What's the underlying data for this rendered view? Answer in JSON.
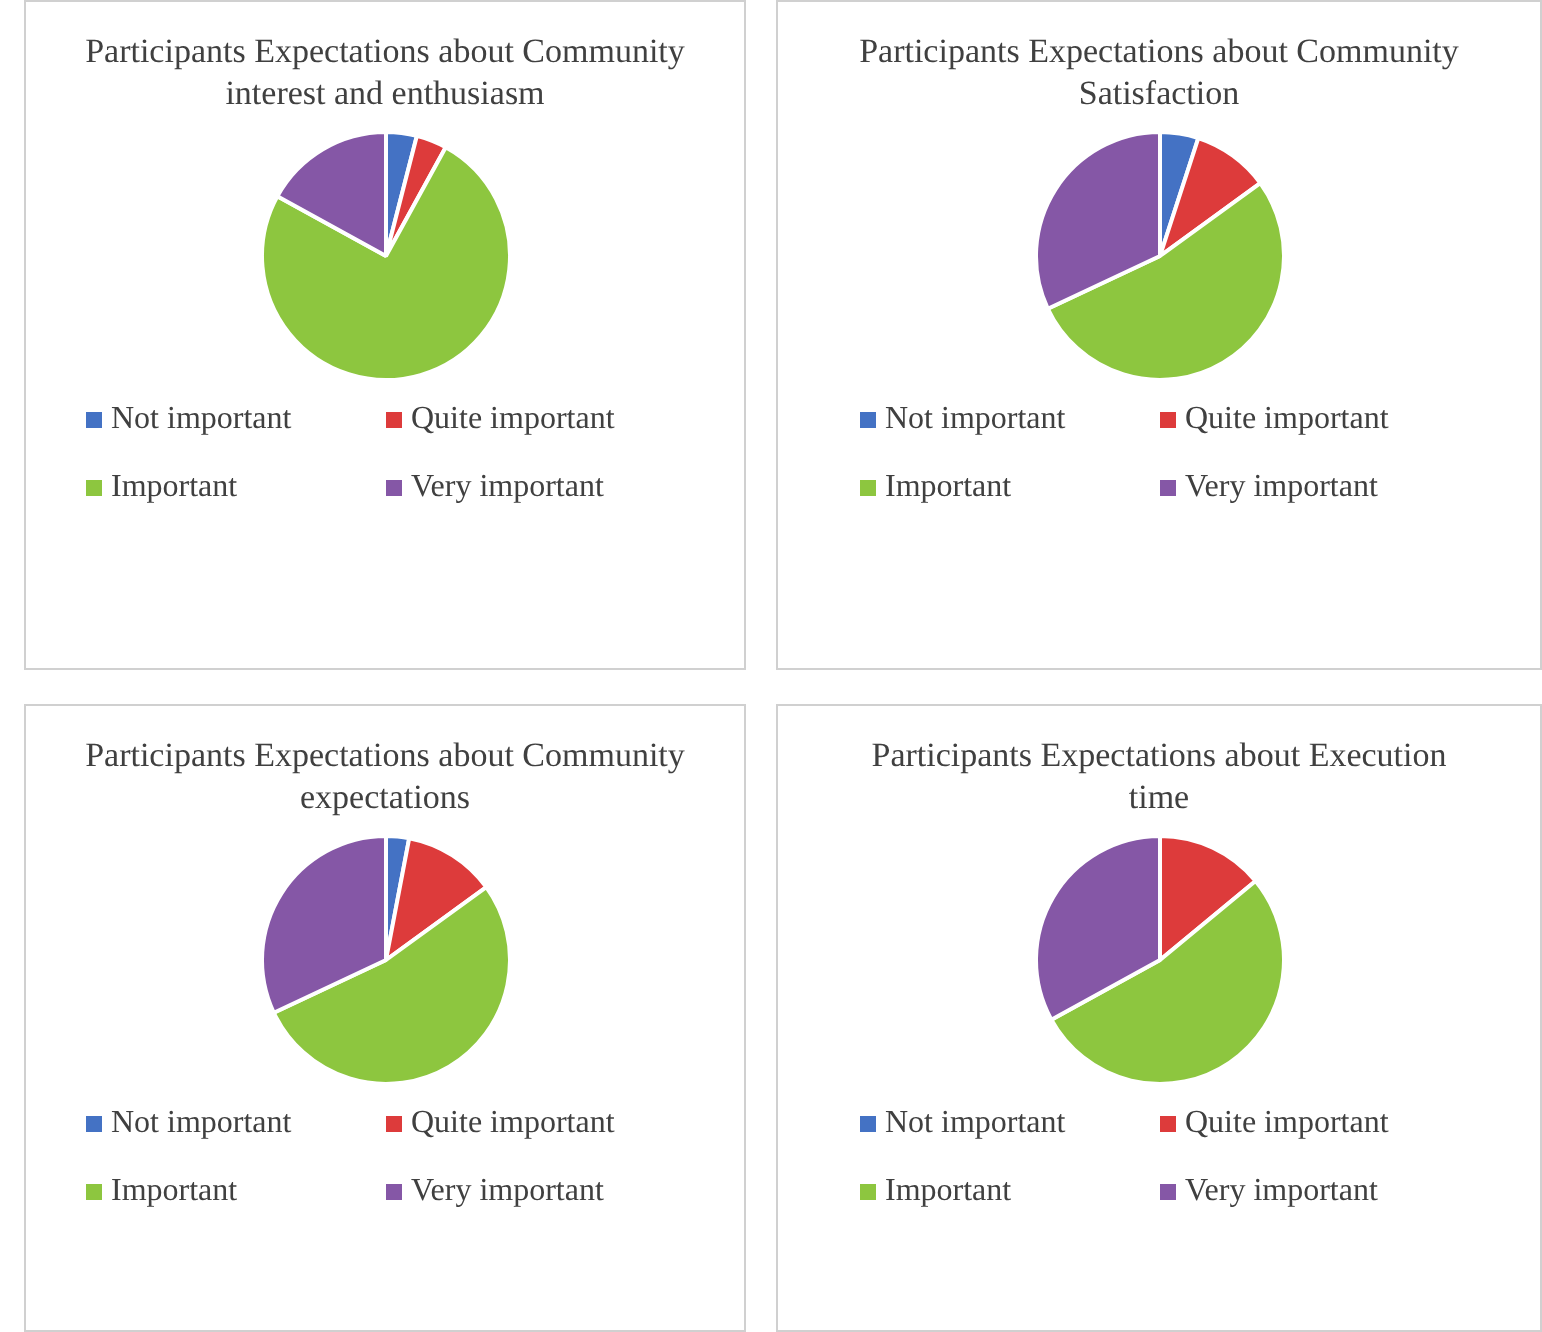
{
  "chart_data": [
    {
      "type": "pie",
      "title": "Participants Expectations about Community interest and enthusiasm",
      "categories": [
        "Not important",
        "Quite important",
        "Important",
        "Very important"
      ],
      "values": [
        4,
        4,
        75,
        17
      ],
      "colors": [
        "#4472c4",
        "#dd3b3b",
        "#8dc63f",
        "#8557a6"
      ],
      "legend": "bottom"
    },
    {
      "type": "pie",
      "title": "Participants Expectations about Community Satisfaction",
      "categories": [
        "Not important",
        "Quite important",
        "Important",
        "Very important"
      ],
      "values": [
        5,
        10,
        53,
        32
      ],
      "colors": [
        "#4472c4",
        "#dd3b3b",
        "#8dc63f",
        "#8557a6"
      ],
      "legend": "bottom"
    },
    {
      "type": "pie",
      "title": "Participants Expectations about Community expectations",
      "categories": [
        "Not important",
        "Quite important",
        "Important",
        "Very important"
      ],
      "values": [
        3,
        12,
        53,
        32
      ],
      "colors": [
        "#4472c4",
        "#dd3b3b",
        "#8dc63f",
        "#8557a6"
      ],
      "legend": "bottom"
    },
    {
      "type": "pie",
      "title": "Participants Expectations about Execution time",
      "categories": [
        "Not important",
        "Quite important",
        "Important",
        "Very important"
      ],
      "values": [
        0,
        14,
        53,
        33
      ],
      "colors": [
        "#4472c4",
        "#dd3b3b",
        "#8dc63f",
        "#8557a6"
      ],
      "legend": "bottom"
    }
  ]
}
